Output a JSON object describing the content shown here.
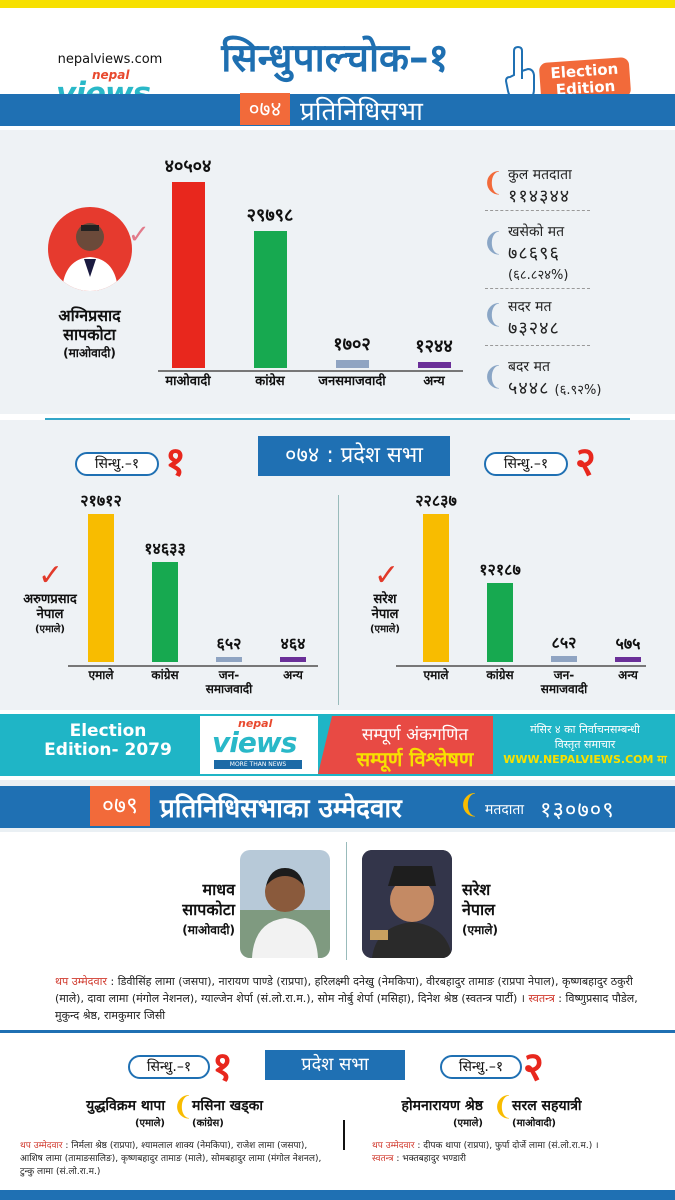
{
  "header": {
    "site": "nepalviews.com",
    "logo_nepal": "nepal",
    "logo_views": "views",
    "logo_tag": "MORE THAN NEWS",
    "title": "सिन्धुपाल्चोक–१",
    "badge_line1": "Election",
    "badge_line2": "Edition",
    "year": "०७४",
    "house": "प्रतिनिधिसभा"
  },
  "fed2074": {
    "winner_line1": "अग्निप्रसाद",
    "winner_line2": "सापकोटा",
    "winner_party": "(माओवादी)",
    "chart_data": {
      "type": "bar",
      "categories": [
        "माओवादी",
        "कांग्रेस",
        "जनसमाजवादी",
        "अन्य"
      ],
      "values": [
        40504,
        29798,
        1702,
        1244
      ],
      "value_labels": [
        "४०५०४",
        "२९७९८",
        "१७०२",
        "१२४४"
      ],
      "colors": [
        "#e8271d",
        "#17a950",
        "#8fa4c2",
        "#6a2f98"
      ]
    },
    "stats": [
      {
        "label": "कुल मतदाता",
        "value": "११४३४४",
        "sub": ""
      },
      {
        "label": "खसेको मत",
        "value": "७८६९६",
        "sub": "(६८.८२४%)"
      },
      {
        "label": "सदर मत",
        "value": "७३२४८",
        "sub": ""
      },
      {
        "label": "बदर मत",
        "value": "५४४८",
        "sub": "(६.९२%)"
      }
    ]
  },
  "prov2074": {
    "title": "०७४ : प्रदेश सभा",
    "left": {
      "pill": "सिन्धु.–१",
      "num": "१",
      "winner_line1": "अरुणप्रसाद",
      "winner_line2": "नेपाल",
      "winner_party": "(एमाले)",
      "chart_data": {
        "type": "bar",
        "categories": [
          "एमाले",
          "कांग्रेस",
          "जन-\nसमाजवादी",
          "अन्य"
        ],
        "values": [
          21712,
          14633,
          652,
          464
        ],
        "value_labels": [
          "२१७१२",
          "१४६३३",
          "६५२",
          "४६४"
        ],
        "colors": [
          "#f8bc00",
          "#17a950",
          "#8fa4c2",
          "#6a2f98"
        ]
      }
    },
    "right": {
      "pill": "सिन्धु.–१",
      "num": "२",
      "winner_line1": "सरेश",
      "winner_line2": "नेपाल",
      "winner_party": "(एमाले)",
      "chart_data": {
        "type": "bar",
        "categories": [
          "एमाले",
          "कांग्रेस",
          "जन-\nसमाजवादी",
          "अन्य"
        ],
        "values": [
          22837,
          12187,
          852,
          575
        ],
        "value_labels": [
          "२२८३७",
          "१२१८७",
          "८५२",
          "५७५"
        ],
        "colors": [
          "#f8bc00",
          "#17a950",
          "#8fa4c2",
          "#6a2f98"
        ]
      }
    }
  },
  "promo": {
    "left_line1": "Election",
    "left_line2": "Edition- 2079",
    "red_line1": "सम्पूर्ण अंकगणित",
    "red_line2": "सम्पूर्ण विश्लेषण",
    "right_line1": "मंसिर ४ का निर्वाचनसम्बन्धी",
    "right_line2": "विस्तृत समाचार",
    "right_url": "WWW.NEPALVIEWS.COM मा"
  },
  "fed2079": {
    "year": "०७९",
    "house": "प्रतिनिधिसभाका उम्मेदवार",
    "voters_label": "मतदाता",
    "voters_value": "१३०७०९",
    "cand1_line1": "माधव",
    "cand1_line2": "सापकोटा",
    "cand1_party": "(माओवादी)",
    "cand2_line1": "सरेश",
    "cand2_line2": "नेपाल",
    "cand2_party": "(एमाले)",
    "others_label": "थप उम्मेदवार",
    "others_text": "डिवीसिंह लामा (जसपा), नारायण पाण्डे (राप्रपा), हरिलक्ष्मी दनेखु (नेमकिपा), वीरबहादुर तामाङ (राप्रपा नेपाल), कृष्णबहादुर ठकुरी (माले), दावा लामा (मंगोल नेशनल), ग्याल्जेन शेर्पा (सं.लो.रा.म.), सोम नोर्बु शेर्पा (मसिहा), दिनेश श्रेष्ठ (स्वतन्त्र पार्टी) ।",
    "indep_label": "स्वतन्त्र",
    "indep_text": "विष्णुप्रसाद पौडेल, मुकुन्द श्रेष्ठ, रामकुमार जिसी"
  },
  "prov2079": {
    "title": "प्रदेश सभा",
    "left": {
      "pill": "सिन्धु.–१",
      "num": "१",
      "c1": "युद्धविक्रम थापा",
      "c1p": "(एमाले)",
      "c2": "मसिना खड्का",
      "c2p": "(कांग्रेस)",
      "others_label": "थप उम्मेदवार",
      "others_text": "निर्मला श्रेष्ठ (राप्रपा), श्यामलाल शाक्य (नेमकिपा), राजेश लामा (जसपा), आशिष लामा (तामाङसालिङ), कृष्णबहादुर तामाङ (माले), सोमबहादुर लामा (मंगोल नेशनल), टुन्कु लामा (सं.लो.रा.म.)"
    },
    "right": {
      "pill": "सिन्धु.–१",
      "num": "२",
      "c1": "होमनारायण श्रेष्ठ",
      "c1p": "(एमाले)",
      "c2": "सरल सहयात्री",
      "c2p": "(माओवादी)",
      "others_label": "थप उम्मेदवार",
      "others_text": "दीपक थापा (राप्रपा), फुर्पा दोर्जे लामा (सं.लो.रा.म.) ।",
      "indep_label": "स्वतन्त्र",
      "indep_text": "भक्तबहादुर भण्डारी"
    }
  }
}
